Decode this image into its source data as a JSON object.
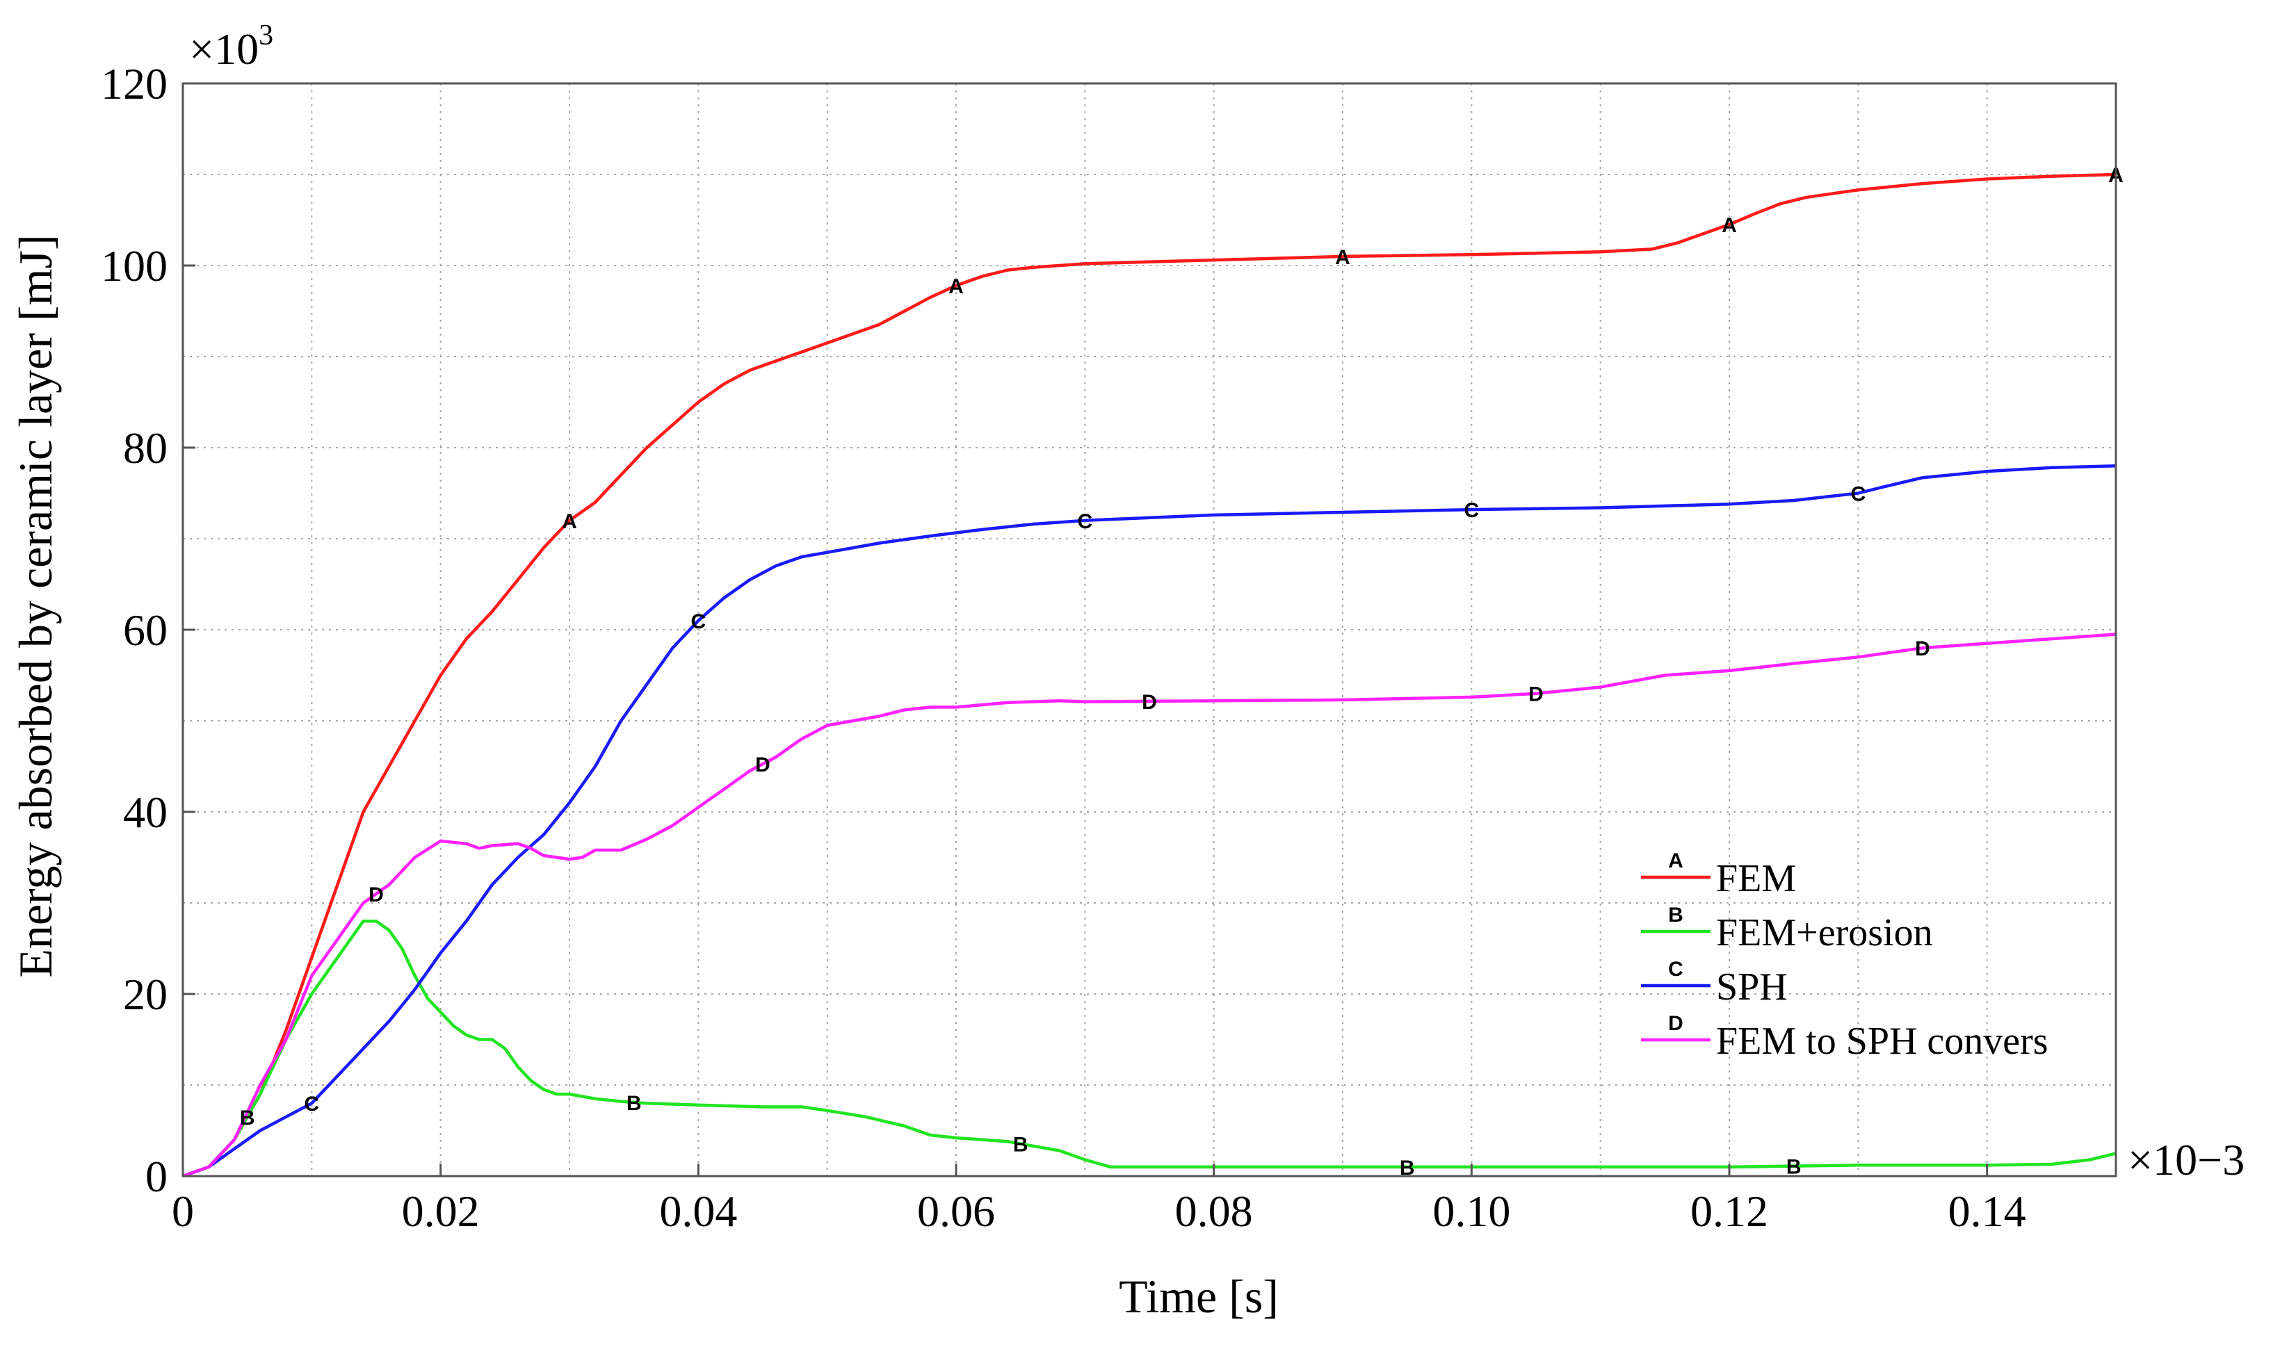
{
  "chart_data": {
    "type": "line",
    "xlabel": "Time [s]",
    "ylabel": "Energy absorbed by ceramic layer [mJ]",
    "x_multiplier": "×10−3",
    "y_multiplier": "×10",
    "y_multiplier_exp": "3",
    "xlim": [
      0,
      0.15
    ],
    "ylim": [
      0,
      120
    ],
    "x_ticks": [
      0,
      0.02,
      0.04,
      0.06,
      0.08,
      0.1,
      0.12,
      0.14
    ],
    "x_tick_labels": [
      "0",
      "0.02",
      "0.04",
      "0.06",
      "0.08",
      "0.10",
      "0.12",
      "0.14"
    ],
    "y_ticks": [
      0,
      20,
      40,
      60,
      80,
      100,
      120
    ],
    "y_tick_labels": [
      "0",
      "20",
      "40",
      "60",
      "80",
      "100",
      "120"
    ],
    "grid": true,
    "legend_position": "bottom-right",
    "series": [
      {
        "name": "FEM",
        "marker": "A",
        "color": "#ff1a1a",
        "points": [
          [
            0,
            0
          ],
          [
            0.002,
            1
          ],
          [
            0.004,
            4
          ],
          [
            0.006,
            9
          ],
          [
            0.008,
            16
          ],
          [
            0.01,
            24
          ],
          [
            0.012,
            32
          ],
          [
            0.014,
            40
          ],
          [
            0.016,
            45
          ],
          [
            0.018,
            50
          ],
          [
            0.02,
            55
          ],
          [
            0.022,
            59
          ],
          [
            0.024,
            62
          ],
          [
            0.026,
            65.5
          ],
          [
            0.028,
            69
          ],
          [
            0.03,
            72
          ],
          [
            0.032,
            74
          ],
          [
            0.034,
            77
          ],
          [
            0.036,
            80
          ],
          [
            0.038,
            82.5
          ],
          [
            0.04,
            85
          ],
          [
            0.042,
            87
          ],
          [
            0.044,
            88.5
          ],
          [
            0.046,
            89.5
          ],
          [
            0.048,
            90.5
          ],
          [
            0.05,
            91.5
          ],
          [
            0.052,
            92.5
          ],
          [
            0.054,
            93.5
          ],
          [
            0.056,
            95
          ],
          [
            0.058,
            96.5
          ],
          [
            0.06,
            97.8
          ],
          [
            0.062,
            98.8
          ],
          [
            0.064,
            99.5
          ],
          [
            0.066,
            99.8
          ],
          [
            0.068,
            100
          ],
          [
            0.07,
            100.2
          ],
          [
            0.08,
            100.6
          ],
          [
            0.09,
            101
          ],
          [
            0.1,
            101.2
          ],
          [
            0.11,
            101.5
          ],
          [
            0.114,
            101.8
          ],
          [
            0.116,
            102.5
          ],
          [
            0.118,
            103.5
          ],
          [
            0.12,
            104.5
          ],
          [
            0.122,
            105.7
          ],
          [
            0.124,
            106.8
          ],
          [
            0.126,
            107.5
          ],
          [
            0.13,
            108.3
          ],
          [
            0.135,
            109
          ],
          [
            0.14,
            109.5
          ],
          [
            0.145,
            109.8
          ],
          [
            0.15,
            110
          ]
        ],
        "marker_x": [
          0.03,
          0.06,
          0.09,
          0.12,
          0.15
        ]
      },
      {
        "name": "FEM+erosion",
        "marker": "B",
        "color": "#22e422",
        "points": [
          [
            0,
            0
          ],
          [
            0.002,
            1
          ],
          [
            0.004,
            4
          ],
          [
            0.006,
            9
          ],
          [
            0.008,
            15
          ],
          [
            0.01,
            20
          ],
          [
            0.012,
            24
          ],
          [
            0.013,
            26
          ],
          [
            0.014,
            28
          ],
          [
            0.015,
            28
          ],
          [
            0.016,
            27
          ],
          [
            0.017,
            25
          ],
          [
            0.018,
            22
          ],
          [
            0.019,
            19.5
          ],
          [
            0.02,
            18
          ],
          [
            0.021,
            16.5
          ],
          [
            0.022,
            15.5
          ],
          [
            0.023,
            15
          ],
          [
            0.024,
            15
          ],
          [
            0.025,
            14
          ],
          [
            0.026,
            12
          ],
          [
            0.027,
            10.5
          ],
          [
            0.028,
            9.5
          ],
          [
            0.029,
            9
          ],
          [
            0.03,
            9
          ],
          [
            0.032,
            8.5
          ],
          [
            0.034,
            8.2
          ],
          [
            0.036,
            8
          ],
          [
            0.04,
            7.8
          ],
          [
            0.045,
            7.6
          ],
          [
            0.048,
            7.6
          ],
          [
            0.05,
            7.2
          ],
          [
            0.053,
            6.5
          ],
          [
            0.056,
            5.5
          ],
          [
            0.058,
            4.5
          ],
          [
            0.06,
            4.2
          ],
          [
            0.064,
            3.8
          ],
          [
            0.066,
            3.3
          ],
          [
            0.068,
            2.8
          ],
          [
            0.07,
            1.8
          ],
          [
            0.072,
            1
          ],
          [
            0.075,
            1
          ],
          [
            0.08,
            1
          ],
          [
            0.09,
            1
          ],
          [
            0.1,
            1
          ],
          [
            0.11,
            1
          ],
          [
            0.12,
            1
          ],
          [
            0.13,
            1.2
          ],
          [
            0.14,
            1.2
          ],
          [
            0.145,
            1.3
          ],
          [
            0.148,
            1.8
          ],
          [
            0.15,
            2.5
          ]
        ],
        "marker_x": [
          0.005,
          0.035,
          0.065,
          0.095,
          0.125
        ]
      },
      {
        "name": "SPH",
        "marker": "C",
        "color": "#1a1aff",
        "points": [
          [
            0,
            0
          ],
          [
            0.002,
            1
          ],
          [
            0.004,
            3
          ],
          [
            0.006,
            5
          ],
          [
            0.008,
            6.5
          ],
          [
            0.01,
            8
          ],
          [
            0.012,
            11
          ],
          [
            0.014,
            14
          ],
          [
            0.016,
            17
          ],
          [
            0.018,
            20.5
          ],
          [
            0.02,
            24.5
          ],
          [
            0.022,
            28
          ],
          [
            0.024,
            32
          ],
          [
            0.026,
            35
          ],
          [
            0.028,
            37.5
          ],
          [
            0.03,
            41
          ],
          [
            0.032,
            45
          ],
          [
            0.034,
            50
          ],
          [
            0.036,
            54
          ],
          [
            0.038,
            58
          ],
          [
            0.04,
            61
          ],
          [
            0.042,
            63.5
          ],
          [
            0.044,
            65.5
          ],
          [
            0.046,
            67
          ],
          [
            0.048,
            68
          ],
          [
            0.05,
            68.5
          ],
          [
            0.054,
            69.5
          ],
          [
            0.058,
            70.3
          ],
          [
            0.062,
            71
          ],
          [
            0.066,
            71.6
          ],
          [
            0.07,
            72
          ],
          [
            0.08,
            72.6
          ],
          [
            0.09,
            72.9
          ],
          [
            0.1,
            73.2
          ],
          [
            0.11,
            73.4
          ],
          [
            0.12,
            73.8
          ],
          [
            0.125,
            74.2
          ],
          [
            0.13,
            75
          ],
          [
            0.132,
            75.7
          ],
          [
            0.135,
            76.7
          ],
          [
            0.14,
            77.4
          ],
          [
            0.145,
            77.8
          ],
          [
            0.15,
            78
          ]
        ],
        "marker_x": [
          0.01,
          0.04,
          0.07,
          0.1,
          0.13
        ]
      },
      {
        "name": "FEM to SPH convers",
        "marker": "D",
        "color": "#ff22ff",
        "points": [
          [
            0,
            0
          ],
          [
            0.002,
            1
          ],
          [
            0.004,
            4
          ],
          [
            0.006,
            10
          ],
          [
            0.008,
            15
          ],
          [
            0.01,
            22
          ],
          [
            0.012,
            26
          ],
          [
            0.014,
            30
          ],
          [
            0.016,
            32
          ],
          [
            0.018,
            35
          ],
          [
            0.02,
            36.8
          ],
          [
            0.022,
            36.5
          ],
          [
            0.023,
            36
          ],
          [
            0.024,
            36.3
          ],
          [
            0.026,
            36.5
          ],
          [
            0.027,
            36
          ],
          [
            0.028,
            35.2
          ],
          [
            0.03,
            34.8
          ],
          [
            0.031,
            35
          ],
          [
            0.032,
            35.8
          ],
          [
            0.034,
            35.8
          ],
          [
            0.036,
            37
          ],
          [
            0.038,
            38.5
          ],
          [
            0.04,
            40.5
          ],
          [
            0.042,
            42.5
          ],
          [
            0.044,
            44.5
          ],
          [
            0.046,
            46
          ],
          [
            0.048,
            48
          ],
          [
            0.05,
            49.5
          ],
          [
            0.052,
            50
          ],
          [
            0.054,
            50.5
          ],
          [
            0.056,
            51.2
          ],
          [
            0.058,
            51.5
          ],
          [
            0.06,
            51.5
          ],
          [
            0.064,
            52
          ],
          [
            0.068,
            52.2
          ],
          [
            0.07,
            52.1
          ],
          [
            0.08,
            52.2
          ],
          [
            0.09,
            52.3
          ],
          [
            0.1,
            52.6
          ],
          [
            0.105,
            53
          ],
          [
            0.11,
            53.7
          ],
          [
            0.115,
            55
          ],
          [
            0.12,
            55.5
          ],
          [
            0.125,
            56.3
          ],
          [
            0.13,
            57
          ],
          [
            0.135,
            58
          ],
          [
            0.14,
            58.5
          ],
          [
            0.145,
            59
          ],
          [
            0.15,
            59.5
          ]
        ],
        "marker_x": [
          0.015,
          0.045,
          0.075,
          0.105,
          0.135
        ]
      }
    ]
  }
}
